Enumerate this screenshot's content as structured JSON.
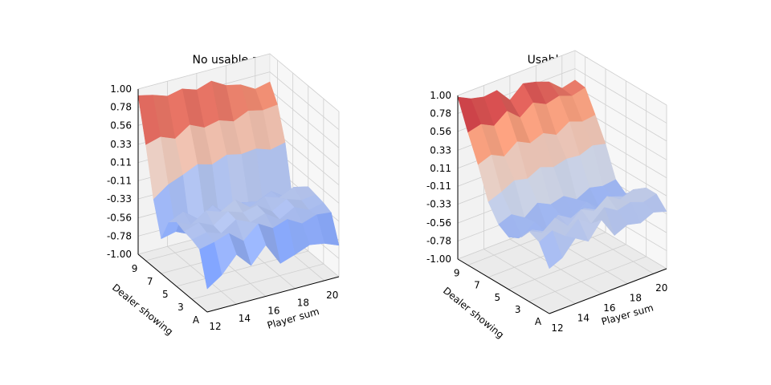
{
  "chart_data": [
    {
      "type": "surface",
      "title": "No usable ace",
      "xlabel": "Player sum",
      "ylabel": "Dealer showing",
      "zlabel": "",
      "x_ticks": [
        "12",
        "14",
        "16",
        "18",
        "20"
      ],
      "y_ticks": [
        "A",
        "3",
        "5",
        "7",
        "9"
      ],
      "z_ticks": [
        "-1.00",
        "-0.78",
        "-0.56",
        "-0.33",
        "-0.11",
        "0.11",
        "0.33",
        "0.56",
        "0.78",
        "1.00"
      ],
      "zlim": [
        -1,
        1
      ],
      "x": [
        12,
        13,
        14,
        15,
        16,
        17,
        18,
        19,
        20,
        21
      ],
      "y": [
        1,
        2,
        3,
        4,
        5,
        6,
        7,
        8,
        9,
        10
      ],
      "z": [
        [
          -0.72,
          -0.6,
          -0.4,
          -0.58,
          -0.38,
          -0.65,
          -0.59,
          -0.52,
          -0.55,
          -0.62
        ],
        [
          -0.32,
          -0.28,
          -0.22,
          -0.36,
          -0.2,
          -0.3,
          -0.24,
          -0.34,
          -0.28,
          -0.3
        ],
        [
          -0.28,
          -0.24,
          -0.3,
          -0.18,
          -0.26,
          -0.2,
          -0.32,
          -0.22,
          -0.3,
          -0.26
        ],
        [
          -0.26,
          -0.2,
          -0.28,
          -0.16,
          -0.22,
          -0.18,
          -0.3,
          -0.2,
          -0.26,
          -0.24
        ],
        [
          -0.22,
          -0.3,
          -0.18,
          -0.24,
          -0.14,
          -0.28,
          -0.2,
          -0.26,
          -0.18,
          -0.22
        ],
        [
          -0.3,
          -0.22,
          -0.36,
          -0.24,
          -0.4,
          -0.3,
          -0.34,
          -0.26,
          -0.38,
          -0.34
        ],
        [
          -0.58,
          -0.54,
          -0.62,
          -0.5,
          -0.6,
          -0.56,
          -0.48,
          -0.58,
          -0.52,
          -0.56
        ],
        [
          -0.18,
          -0.05,
          0.02,
          0.1,
          0.05,
          0.12,
          0.08,
          0.1,
          0.04,
          0.08
        ],
        [
          0.4,
          0.45,
          0.38,
          0.5,
          0.42,
          0.46,
          0.4,
          0.48,
          0.44,
          0.46
        ],
        [
          0.92,
          0.88,
          0.82,
          0.86,
          0.8,
          0.86,
          0.76,
          0.72,
          0.62,
          0.66
        ]
      ]
    },
    {
      "type": "surface",
      "title": "Usable ace",
      "xlabel": "Player sum",
      "ylabel": "Dealer showing",
      "zlabel": "",
      "x_ticks": [
        "12",
        "14",
        "16",
        "18",
        "20"
      ],
      "y_ticks": [
        "A",
        "3",
        "5",
        "7",
        "9"
      ],
      "z_ticks": [
        "-1.00",
        "-0.78",
        "-0.56",
        "-0.33",
        "-0.11",
        "0.11",
        "0.33",
        "0.56",
        "0.78",
        "1.00"
      ],
      "zlim": [
        -1,
        1
      ],
      "x": [
        12,
        13,
        14,
        15,
        16,
        17,
        18,
        19,
        20,
        21
      ],
      "y": [
        1,
        2,
        3,
        4,
        5,
        6,
        7,
        8,
        9,
        10
      ],
      "z": [
        [
          -0.45,
          -0.38,
          -0.2,
          -0.3,
          -0.1,
          -0.35,
          -0.28,
          -0.32,
          -0.25,
          -0.3
        ],
        [
          -0.2,
          -0.12,
          -0.25,
          -0.1,
          -0.22,
          -0.08,
          -0.18,
          -0.14,
          -0.2,
          -0.16
        ],
        [
          -0.14,
          -0.22,
          -0.1,
          -0.26,
          -0.12,
          -0.2,
          -0.08,
          -0.18,
          -0.12,
          -0.16
        ],
        [
          -0.3,
          -0.26,
          -0.34,
          -0.2,
          -0.3,
          -0.24,
          -0.32,
          -0.22,
          -0.28,
          -0.26
        ],
        [
          -0.36,
          -0.42,
          -0.3,
          -0.46,
          -0.34,
          -0.4,
          -0.3,
          -0.44,
          -0.36,
          -0.38
        ],
        [
          -0.28,
          -0.22,
          -0.32,
          -0.2,
          -0.28,
          -0.24,
          -0.34,
          -0.26,
          -0.3,
          -0.28
        ],
        [
          -0.08,
          -0.02,
          0.06,
          0.02,
          0.1,
          0.04,
          0.08,
          0.06,
          0.12,
          0.08
        ],
        [
          0.3,
          0.36,
          0.28,
          0.4,
          0.32,
          0.38,
          0.3,
          0.4,
          0.34,
          0.36
        ],
        [
          0.62,
          0.66,
          0.58,
          0.7,
          0.56,
          0.68,
          0.6,
          0.64,
          0.58,
          0.62
        ],
        [
          0.98,
          0.9,
          0.86,
          0.88,
          0.7,
          0.84,
          0.8,
          0.74,
          0.6,
          0.64
        ]
      ]
    }
  ]
}
